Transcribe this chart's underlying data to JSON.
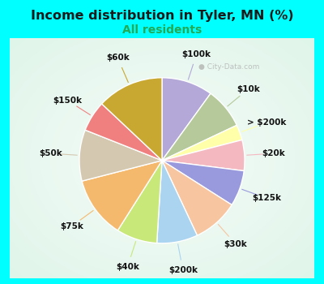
{
  "title": "Income distribution in Tyler, MN (%)",
  "subtitle": "All residents",
  "watermark": "City-Data.com",
  "background_outer": "#00FFFF",
  "background_inner_color": "#c8edd8",
  "slices": [
    {
      "label": "$100k",
      "value": 10,
      "color": "#b3a8d8"
    },
    {
      "label": "$10k",
      "value": 8,
      "color": "#b5c99a"
    },
    {
      "label": "> $200k",
      "value": 3,
      "color": "#ffffaa"
    },
    {
      "label": "$20k",
      "value": 6,
      "color": "#f4b8c1"
    },
    {
      "label": "$125k",
      "value": 7,
      "color": "#9999dd"
    },
    {
      "label": "$30k",
      "value": 9,
      "color": "#f7c5a0"
    },
    {
      "label": "$200k",
      "value": 8,
      "color": "#aad4f0"
    },
    {
      "label": "$40k",
      "value": 8,
      "color": "#c8e87a"
    },
    {
      "label": "$75k",
      "value": 12,
      "color": "#f5b96e"
    },
    {
      "label": "$50k",
      "value": 10,
      "color": "#d4c8b0"
    },
    {
      "label": "$150k",
      "value": 6,
      "color": "#f08080"
    },
    {
      "label": "$60k",
      "value": 13,
      "color": "#c8a830"
    }
  ],
  "label_color": "#111111",
  "title_fontsize": 11.5,
  "subtitle_fontsize": 10,
  "subtitle_color": "#22aa55",
  "label_fontsize": 7.5
}
